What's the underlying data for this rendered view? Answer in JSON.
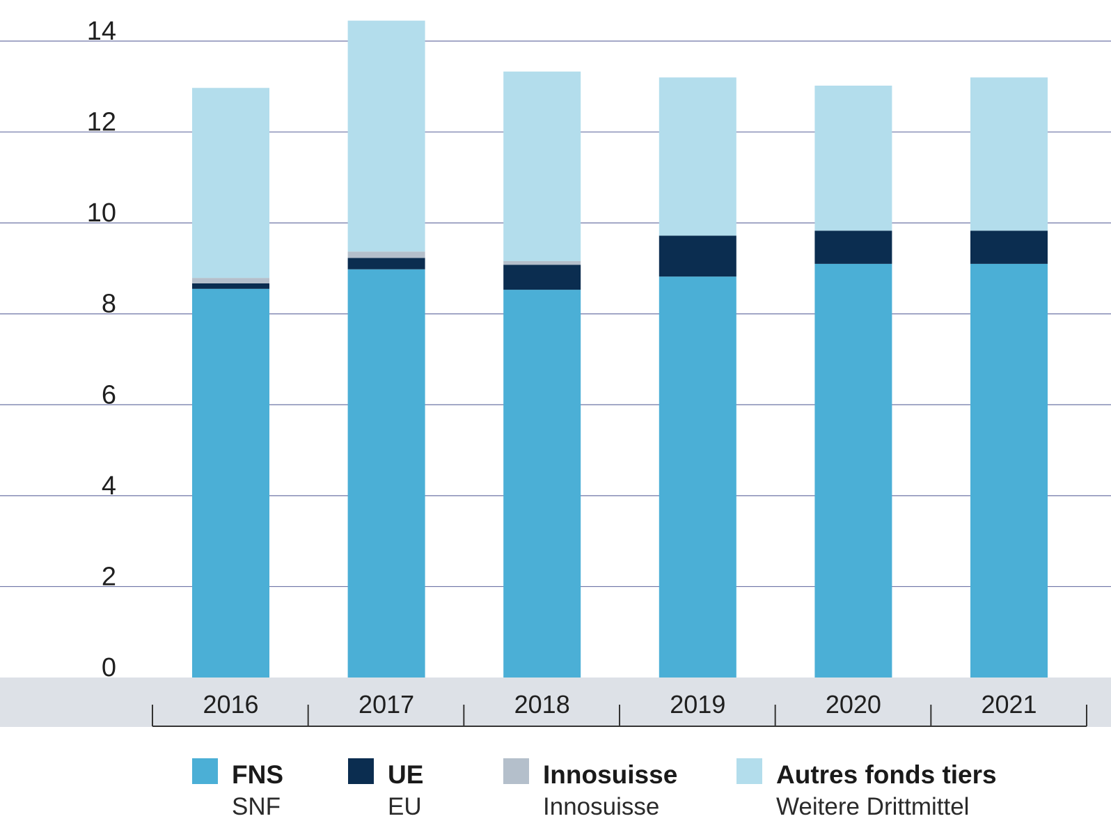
{
  "chart_data": {
    "type": "bar",
    "stacked": true,
    "categories": [
      "2016",
      "2017",
      "2018",
      "2019",
      "2020",
      "2021"
    ],
    "ylim": [
      0,
      14
    ],
    "yticks": [
      0,
      2,
      4,
      6,
      8,
      10,
      12,
      14
    ],
    "grid": true,
    "legend_position": "bottom",
    "series": [
      {
        "name": "FNS",
        "subname": "SNF",
        "color": "#4bafd6",
        "values": [
          8.55,
          8.98,
          8.53,
          8.82,
          9.1,
          9.1
        ]
      },
      {
        "name": "UE",
        "subname": "EU",
        "color": "#0b2d50",
        "values": [
          0.12,
          0.25,
          0.55,
          0.9,
          0.73,
          0.73
        ]
      },
      {
        "name": "Innosuisse",
        "subname": "Innosuisse",
        "color": "#b4bfcb",
        "values": [
          0.12,
          0.14,
          0.08,
          0.0,
          0.0,
          0.0
        ]
      },
      {
        "name": "Autres fonds tiers",
        "subname": "Weitere Drittmittel",
        "color": "#b3ddec",
        "values": [
          4.18,
          5.08,
          4.17,
          3.48,
          3.19,
          3.37
        ]
      }
    ]
  }
}
